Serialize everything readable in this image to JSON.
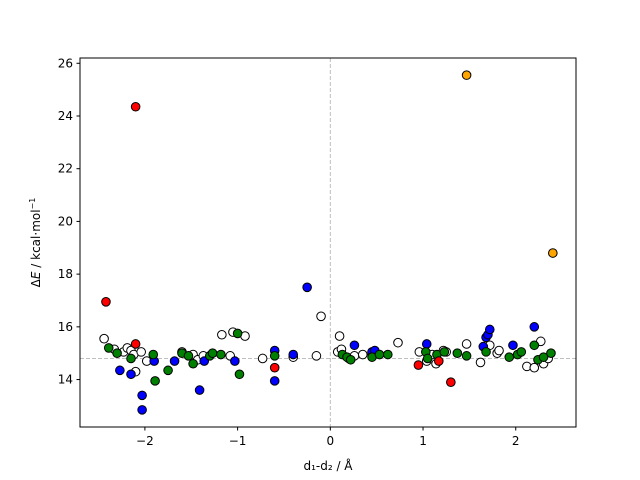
{
  "chart_data": {
    "type": "scatter",
    "xlabel": "d₁-d₂ / Å",
    "ylabel_parts": [
      "Δ",
      "E",
      " / kcal·mol",
      "−1"
    ],
    "xlim": [
      -2.7,
      2.65
    ],
    "ylim": [
      12.2,
      26.2
    ],
    "xticks": [
      -2,
      -1,
      0,
      1,
      2
    ],
    "yticks": [
      14,
      16,
      18,
      20,
      22,
      24,
      26
    ],
    "grid": false,
    "reference_lines": {
      "x": 0,
      "y": 14.8,
      "style": "dashed",
      "color": "#bfbfbf"
    },
    "series": [
      {
        "color": "#ffffff",
        "points": [
          [
            -2.44,
            15.55
          ],
          [
            -2.33,
            15.15
          ],
          [
            -2.23,
            15.05
          ],
          [
            -2.19,
            15.2
          ],
          [
            -2.15,
            15.1
          ],
          [
            -2.12,
            14.95
          ],
          [
            -2.1,
            14.3
          ],
          [
            -2.04,
            15.05
          ],
          [
            -1.98,
            14.7
          ],
          [
            -1.6,
            15.05
          ],
          [
            -1.48,
            14.95
          ],
          [
            -1.43,
            14.75
          ],
          [
            -1.37,
            14.9
          ],
          [
            -1.17,
            15.7
          ],
          [
            -1.08,
            14.9
          ],
          [
            -1.05,
            15.8
          ],
          [
            -0.92,
            15.65
          ],
          [
            -0.73,
            14.8
          ],
          [
            -0.4,
            14.85
          ],
          [
            -0.15,
            14.9
          ],
          [
            -0.1,
            16.4
          ],
          [
            0.08,
            15.05
          ],
          [
            0.1,
            15.65
          ],
          [
            0.12,
            15.15
          ],
          [
            0.2,
            14.8
          ],
          [
            0.26,
            14.9
          ],
          [
            0.35,
            14.95
          ],
          [
            0.45,
            15.0
          ],
          [
            0.73,
            15.4
          ],
          [
            0.96,
            15.05
          ],
          [
            1.04,
            14.7
          ],
          [
            1.1,
            14.95
          ],
          [
            1.14,
            14.6
          ],
          [
            1.22,
            15.1
          ],
          [
            1.25,
            15.05
          ],
          [
            1.47,
            15.35
          ],
          [
            1.62,
            14.65
          ],
          [
            1.72,
            15.3
          ],
          [
            1.8,
            15.0
          ],
          [
            1.82,
            15.1
          ],
          [
            2.12,
            14.5
          ],
          [
            2.2,
            14.45
          ],
          [
            2.27,
            15.45
          ],
          [
            2.3,
            14.6
          ],
          [
            2.35,
            14.8
          ]
        ]
      },
      {
        "color": "#0000ff",
        "points": [
          [
            -2.27,
            14.35
          ],
          [
            -2.15,
            14.2
          ],
          [
            -2.03,
            13.4
          ],
          [
            -2.03,
            12.85
          ],
          [
            -1.9,
            14.7
          ],
          [
            -1.68,
            14.7
          ],
          [
            -1.41,
            13.6
          ],
          [
            -1.36,
            14.7
          ],
          [
            -1.03,
            14.7
          ],
          [
            -0.6,
            15.1
          ],
          [
            -0.6,
            13.95
          ],
          [
            -0.4,
            14.95
          ],
          [
            -0.25,
            17.5
          ],
          [
            0.26,
            15.3
          ],
          [
            0.45,
            15.05
          ],
          [
            0.48,
            15.1
          ],
          [
            1.04,
            15.35
          ],
          [
            1.65,
            15.25
          ],
          [
            1.68,
            15.6
          ],
          [
            1.7,
            15.7
          ],
          [
            1.72,
            15.9
          ],
          [
            1.97,
            15.3
          ],
          [
            2.2,
            16.0
          ]
        ]
      },
      {
        "color": "#008000",
        "points": [
          [
            -2.39,
            15.2
          ],
          [
            -2.3,
            15.0
          ],
          [
            -2.15,
            14.8
          ],
          [
            -1.91,
            14.95
          ],
          [
            -1.89,
            13.95
          ],
          [
            -1.75,
            14.35
          ],
          [
            -1.6,
            15.0
          ],
          [
            -1.53,
            14.9
          ],
          [
            -1.48,
            14.6
          ],
          [
            -1.3,
            14.9
          ],
          [
            -1.27,
            15.0
          ],
          [
            -1.18,
            14.95
          ],
          [
            -1.0,
            15.75
          ],
          [
            -0.98,
            14.2
          ],
          [
            -0.6,
            14.9
          ],
          [
            0.13,
            14.95
          ],
          [
            0.18,
            14.85
          ],
          [
            0.22,
            14.75
          ],
          [
            0.45,
            14.85
          ],
          [
            0.53,
            14.95
          ],
          [
            0.62,
            14.95
          ],
          [
            1.03,
            15.05
          ],
          [
            1.05,
            14.8
          ],
          [
            1.15,
            14.95
          ],
          [
            1.23,
            15.05
          ],
          [
            1.37,
            15.0
          ],
          [
            1.47,
            14.9
          ],
          [
            1.68,
            15.05
          ],
          [
            1.93,
            14.85
          ],
          [
            2.02,
            14.95
          ],
          [
            2.06,
            15.05
          ],
          [
            2.2,
            15.3
          ],
          [
            2.24,
            14.75
          ],
          [
            2.3,
            14.85
          ],
          [
            2.38,
            15.0
          ]
        ]
      },
      {
        "color": "#ff0000",
        "points": [
          [
            -2.42,
            16.95
          ],
          [
            -2.1,
            24.35
          ],
          [
            -2.1,
            15.35
          ],
          [
            -0.6,
            14.45
          ],
          [
            0.95,
            14.55
          ],
          [
            1.17,
            14.7
          ],
          [
            1.3,
            13.9
          ]
        ]
      },
      {
        "color": "#ffa500",
        "points": [
          [
            1.47,
            25.55
          ],
          [
            2.4,
            18.8
          ]
        ]
      }
    ]
  }
}
